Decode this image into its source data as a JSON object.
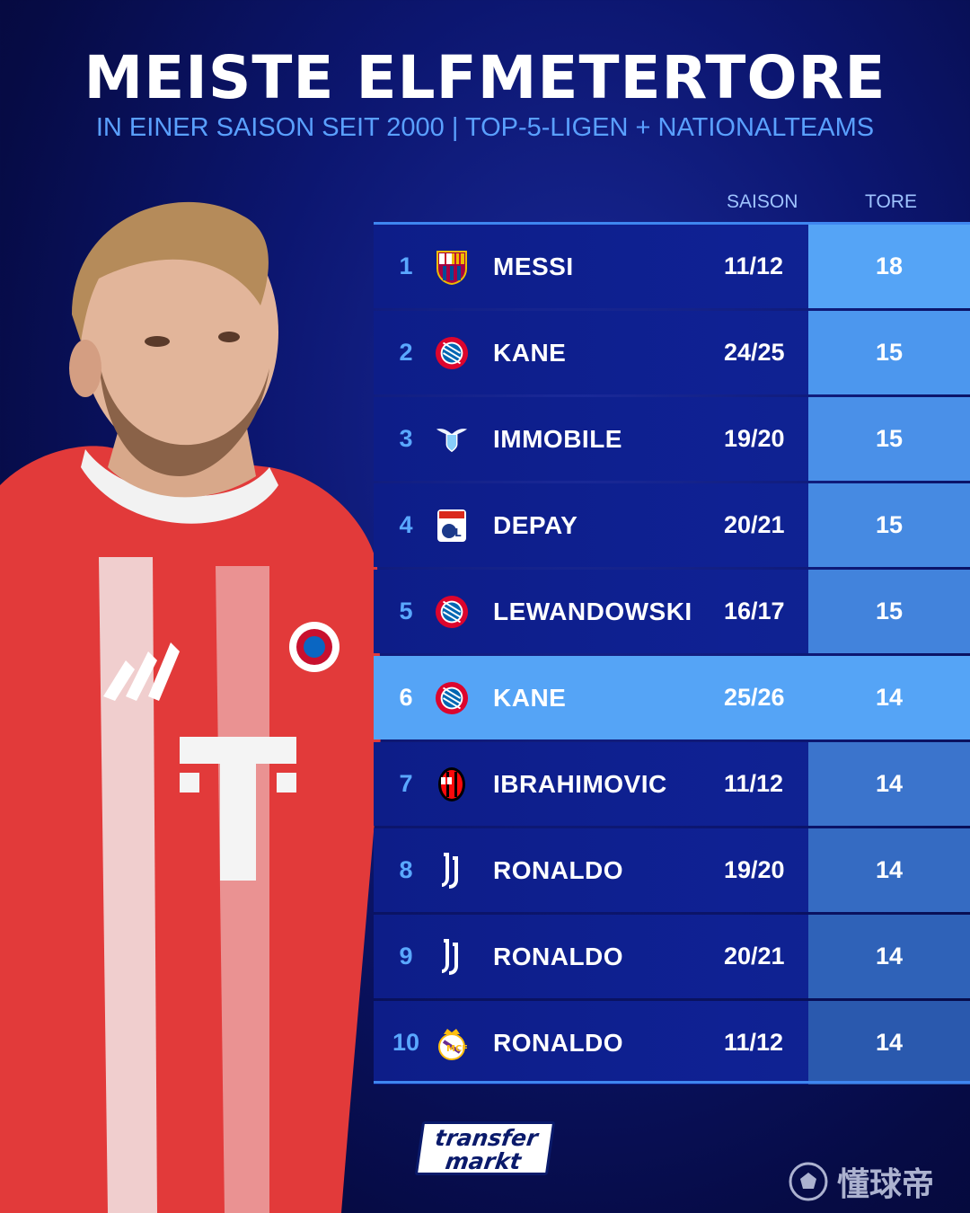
{
  "header": {
    "title": "MEISTE ELFMETERTORE",
    "subtitle": "IN EINER SAISON SEIT 2000 | TOP-5-LIGEN + NATIONALTEAMS"
  },
  "columns": {
    "season": "SAISON",
    "goals": "TORE"
  },
  "rows": [
    {
      "rank": "1",
      "club": "barcelona",
      "name": "MESSI",
      "season": "11/12",
      "goals": "18",
      "highlight": false
    },
    {
      "rank": "2",
      "club": "bayern",
      "name": "KANE",
      "season": "24/25",
      "goals": "15",
      "highlight": false
    },
    {
      "rank": "3",
      "club": "lazio",
      "name": "IMMOBILE",
      "season": "19/20",
      "goals": "15",
      "highlight": false
    },
    {
      "rank": "4",
      "club": "lyon",
      "name": "DEPAY",
      "season": "20/21",
      "goals": "15",
      "highlight": false
    },
    {
      "rank": "5",
      "club": "bayern",
      "name": "LEWANDOWSKI",
      "season": "16/17",
      "goals": "15",
      "highlight": false
    },
    {
      "rank": "6",
      "club": "bayern",
      "name": "KANE",
      "season": "25/26",
      "goals": "14",
      "highlight": true
    },
    {
      "rank": "7",
      "club": "milan",
      "name": "IBRAHIMOVIC",
      "season": "11/12",
      "goals": "14",
      "highlight": false
    },
    {
      "rank": "8",
      "club": "juventus",
      "name": "RONALDO",
      "season": "19/20",
      "goals": "14",
      "highlight": false
    },
    {
      "rank": "9",
      "club": "juventus",
      "name": "RONALDO",
      "season": "20/21",
      "goals": "14",
      "highlight": false
    },
    {
      "rank": "10",
      "club": "real-madrid",
      "name": "RONALDO",
      "season": "11/12",
      "goals": "14",
      "highlight": false
    }
  ],
  "goals_column_colors": [
    "#55a4f6",
    "#4c97ee",
    "#4a90e8",
    "#468ae2",
    "#4283dc",
    "#55a4f6",
    "#3b74cc",
    "#356bc2",
    "#2f62b8",
    "#2a59ae"
  ],
  "logo": {
    "line1": "transfer",
    "line2": "markt"
  },
  "watermark": {
    "text": "懂球帝"
  },
  "colors": {
    "accent": "#5aa0ff",
    "highlight": "#55a4f6",
    "jersey_red": "#e23a3a"
  }
}
